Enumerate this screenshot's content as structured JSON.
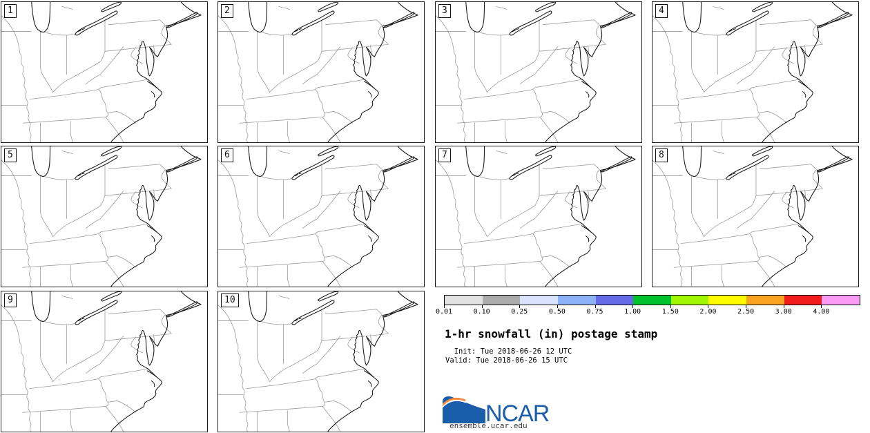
{
  "figure": {
    "title": "1-hr snowfall (in) postage stamp",
    "init_label": "  Init: Tue 2018-06-26 12 UTC",
    "valid_label": "Valid: Tue 2018-06-26 15 UTC"
  },
  "panels": [
    {
      "label": "1"
    },
    {
      "label": "2"
    },
    {
      "label": "3"
    },
    {
      "label": "4"
    },
    {
      "label": "5"
    },
    {
      "label": "6"
    },
    {
      "label": "7"
    },
    {
      "label": "8"
    },
    {
      "label": "9"
    },
    {
      "label": "10"
    }
  ],
  "legend": {
    "colorbar": {
      "tick_labels": [
        "0.01",
        "0.10",
        "0.25",
        "0.50",
        "0.75",
        "1.00",
        "1.50",
        "2.00",
        "2.50",
        "3.00",
        "4.00"
      ],
      "segment_colors": [
        "#e2e2e2",
        "#ababab",
        "#d9e3fb",
        "#8db2f9",
        "#656ae6",
        "#00c32c",
        "#a0f500",
        "#fffc00",
        "#f9a420",
        "#f01d1c",
        "#fb9bf5"
      ],
      "units": "in"
    }
  },
  "logo": {
    "text": "NCAR",
    "site": "ensemble.ucar.edu",
    "blue": "#1a5dab",
    "orange": "#f58b3c"
  }
}
